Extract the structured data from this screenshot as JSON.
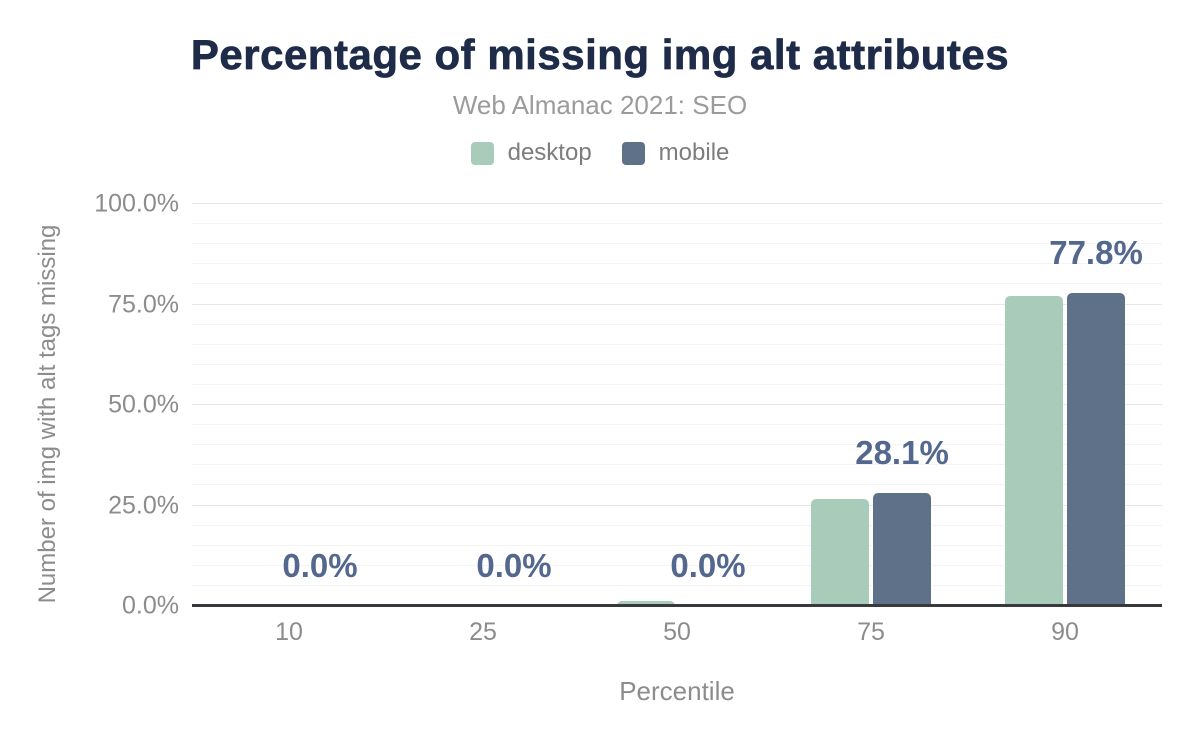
{
  "colors": {
    "title": "#1e2b49",
    "subtitle": "#9b9b9b",
    "axis_text": "#8c8c8c",
    "value_label": "#54678f",
    "desktop": "#a9ccba",
    "mobile": "#5f7089",
    "grid_minor": "#f4f4f4",
    "grid_major": "#e6e6e6",
    "baseline": "#37393d"
  },
  "legend": {
    "items": [
      {
        "name": "desktop",
        "label": "desktop",
        "color": "#a9ccba"
      },
      {
        "name": "mobile",
        "label": "mobile",
        "color": "#5f7089"
      }
    ]
  },
  "chart_data": {
    "type": "bar",
    "title": "Percentage of missing img alt attributes",
    "subtitle": "Web Almanac 2021: SEO",
    "xlabel": "Percentile",
    "ylabel": "Number of img with alt tags missing",
    "categories": [
      "10",
      "25",
      "50",
      "75",
      "90"
    ],
    "series": [
      {
        "name": "desktop",
        "color": "#a9ccba",
        "values": [
          0,
          0,
          1.2,
          26.6,
          77.0
        ]
      },
      {
        "name": "mobile",
        "color": "#5f7089",
        "values": [
          0,
          0,
          0,
          28.1,
          77.8
        ]
      }
    ],
    "value_labels": {
      "labeled_series": "mobile",
      "values": [
        "0.0%",
        "0.0%",
        "0.0%",
        "28.1%",
        "77.8%"
      ]
    },
    "ylim": [
      0,
      100
    ],
    "yticks": [
      {
        "label": "0.0%",
        "value": 0
      },
      {
        "label": "25.0%",
        "value": 25
      },
      {
        "label": "50.0%",
        "value": 50
      },
      {
        "label": "75.0%",
        "value": 75
      },
      {
        "label": "100.0%",
        "value": 100
      }
    ],
    "grid": {
      "on": true,
      "minor_step": 5,
      "major_step": 25
    },
    "legend_position": "top-center"
  }
}
